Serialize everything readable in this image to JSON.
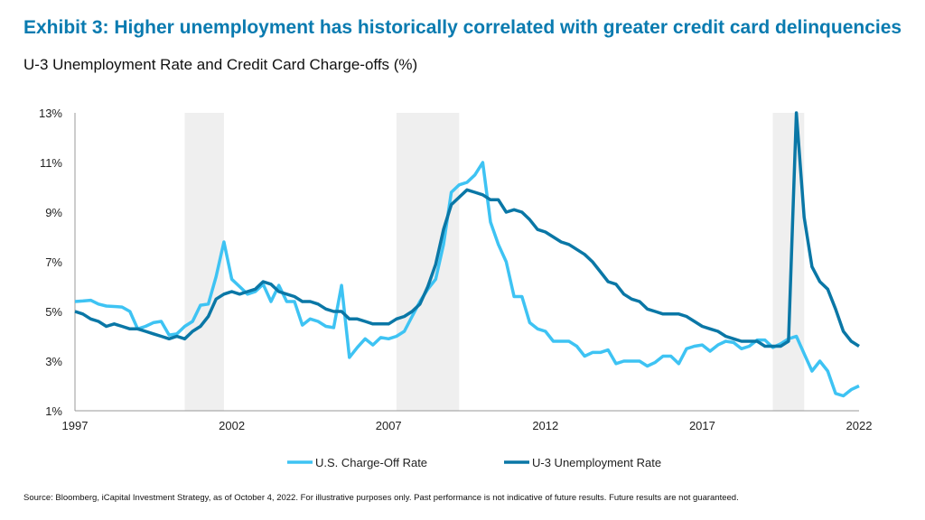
{
  "title": "Exhibit 3: Higher unemployment has historically correlated with greater credit card delinquencies",
  "subtitle": "U-3 Unemployment Rate and Credit Card Charge-offs (%)",
  "source": "Source: Bloomberg, iCapital Investment Strategy, as of October 4, 2022. For illustrative purposes only. Past performance is not indicative of future results. Future results are not guaranteed.",
  "chart_data": {
    "type": "line",
    "frequency": "quarterly",
    "x_start": 1997,
    "xlim": [
      1997,
      2022
    ],
    "ylim": [
      1,
      13
    ],
    "x_ticks": [
      "1997",
      "2002",
      "2007",
      "2012",
      "2017",
      "2022"
    ],
    "y_ticks": [
      "1%",
      "3%",
      "5%",
      "7%",
      "9%",
      "11%",
      "13%"
    ],
    "grid": false,
    "legend_position": "bottom",
    "recession_shading": [
      [
        2000.5,
        2001.75
      ],
      [
        2007.25,
        2009.25
      ],
      [
        2019.25,
        2020.25
      ]
    ],
    "series": [
      {
        "name": "U.S. Charge-Off Rate",
        "color": "#3ec3f3",
        "values": [
          5.4,
          5.42,
          5.45,
          5.3,
          5.22,
          5.2,
          5.18,
          5.0,
          4.3,
          4.4,
          4.55,
          4.6,
          4.05,
          4.1,
          4.4,
          4.6,
          5.25,
          5.3,
          6.4,
          7.8,
          6.3,
          6.0,
          5.7,
          5.8,
          6.1,
          5.4,
          6.05,
          5.4,
          5.4,
          4.45,
          4.7,
          4.6,
          4.4,
          4.35,
          6.05,
          3.15,
          3.55,
          3.9,
          3.65,
          3.95,
          3.9,
          4.0,
          4.2,
          4.8,
          5.4,
          5.9,
          6.3,
          7.7,
          9.8,
          10.1,
          10.2,
          10.5,
          11.0,
          8.6,
          7.7,
          7.0,
          5.6,
          5.6,
          4.55,
          4.3,
          4.2,
          3.8,
          3.8,
          3.8,
          3.6,
          3.2,
          3.35,
          3.35,
          3.45,
          2.9,
          3.0,
          3.0,
          3.0,
          2.8,
          2.95,
          3.2,
          3.2,
          2.9,
          3.5,
          3.6,
          3.65,
          3.4,
          3.65,
          3.8,
          3.75,
          3.5,
          3.6,
          3.85,
          3.85,
          3.55,
          3.7,
          3.9,
          4.0,
          3.3,
          2.6,
          3.0,
          2.6,
          1.7,
          1.6,
          1.85,
          2.0
        ]
      },
      {
        "name": "U-3 Unemployment Rate",
        "color": "#0a77a6",
        "values": [
          5.0,
          4.9,
          4.7,
          4.6,
          4.4,
          4.5,
          4.4,
          4.3,
          4.3,
          4.2,
          4.1,
          4.0,
          3.9,
          4.0,
          3.9,
          4.2,
          4.4,
          4.8,
          5.5,
          5.7,
          5.8,
          5.7,
          5.8,
          5.9,
          6.2,
          6.1,
          5.8,
          5.7,
          5.6,
          5.4,
          5.4,
          5.3,
          5.1,
          5.0,
          5.0,
          4.7,
          4.7,
          4.6,
          4.5,
          4.5,
          4.5,
          4.7,
          4.8,
          5.0,
          5.3,
          6.0,
          6.9,
          8.3,
          9.3,
          9.6,
          9.9,
          9.8,
          9.7,
          9.5,
          9.5,
          9.0,
          9.1,
          9.0,
          8.7,
          8.3,
          8.2,
          8.0,
          7.8,
          7.7,
          7.5,
          7.3,
          7.0,
          6.6,
          6.2,
          6.1,
          5.7,
          5.5,
          5.4,
          5.1,
          5.0,
          4.9,
          4.9,
          4.9,
          4.8,
          4.6,
          4.4,
          4.3,
          4.2,
          4.0,
          3.9,
          3.8,
          3.8,
          3.8,
          3.6,
          3.6,
          3.6,
          3.8,
          13.0,
          8.8,
          6.8,
          6.2,
          5.9,
          5.1,
          4.2,
          3.8,
          3.6
        ]
      }
    ]
  }
}
